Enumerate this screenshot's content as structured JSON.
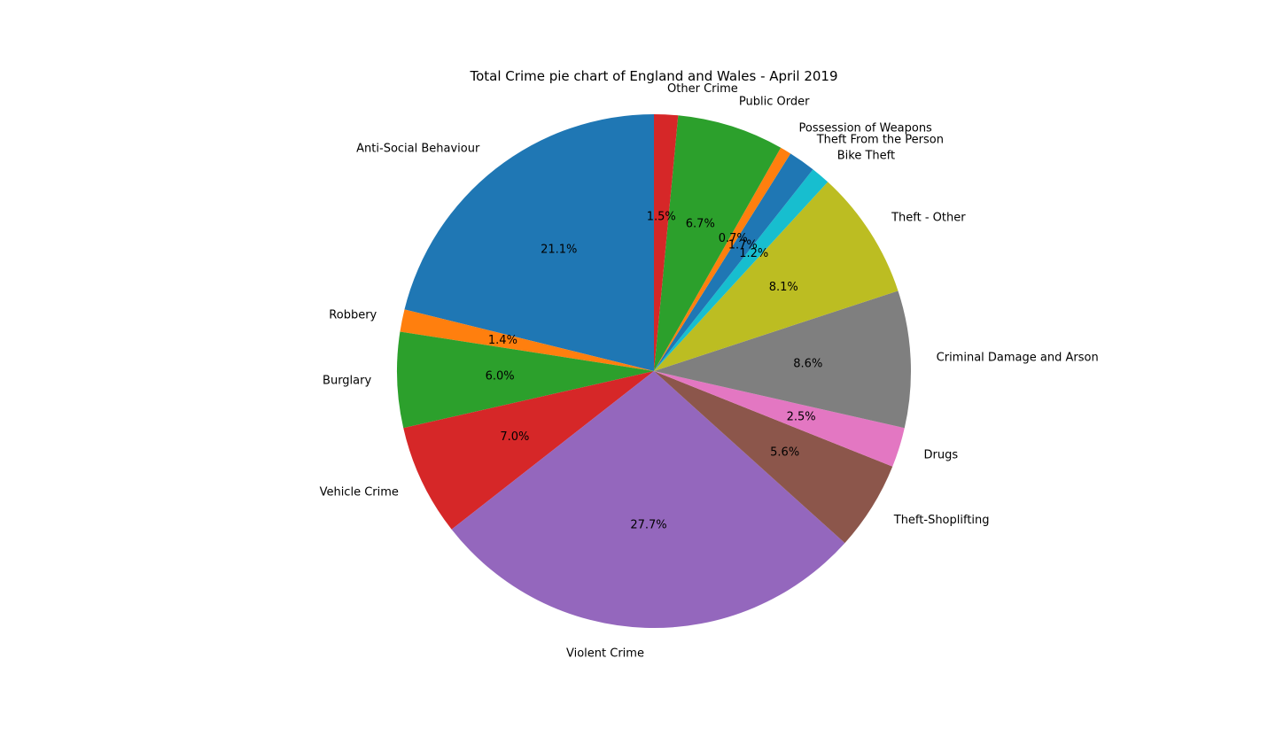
{
  "chart_data": {
    "type": "pie",
    "title": "Total Crime pie chart of England and Wales - April 2019",
    "start_angle_deg": 90,
    "direction": "counterclockwise",
    "slices": [
      {
        "label": "Anti-Social Behaviour",
        "value": 21.1,
        "pct_label": "21.1%",
        "color": "#1f77b4"
      },
      {
        "label": "Robbery",
        "value": 1.4,
        "pct_label": "1.4%",
        "color": "#ff7f0e"
      },
      {
        "label": "Burglary",
        "value": 6.0,
        "pct_label": "6.0%",
        "color": "#2ca02c"
      },
      {
        "label": "Vehicle Crime",
        "value": 7.0,
        "pct_label": "7.0%",
        "color": "#d62728"
      },
      {
        "label": "Violent Crime",
        "value": 27.7,
        "pct_label": "27.7%",
        "color": "#9467bd"
      },
      {
        "label": "Theft-Shoplifting",
        "value": 5.6,
        "pct_label": "5.6%",
        "color": "#8c564b"
      },
      {
        "label": "Drugs",
        "value": 2.5,
        "pct_label": "2.5%",
        "color": "#e377c2"
      },
      {
        "label": "Criminal Damage and Arson",
        "value": 8.6,
        "pct_label": "8.6%",
        "color": "#7f7f7f"
      },
      {
        "label": "Theft - Other",
        "value": 8.1,
        "pct_label": "8.1%",
        "color": "#bcbd22"
      },
      {
        "label": "Bike Theft",
        "value": 1.2,
        "pct_label": "1.2%",
        "color": "#17becf"
      },
      {
        "label": "Theft From the Person",
        "value": 1.7,
        "pct_label": "1.7%",
        "color": "#1f77b4"
      },
      {
        "label": "Possession of Weapons",
        "value": 0.7,
        "pct_label": "0.7%",
        "color": "#ff7f0e"
      },
      {
        "label": "Public Order",
        "value": 6.7,
        "pct_label": "6.7%",
        "color": "#2ca02c"
      },
      {
        "label": "Other Crime",
        "value": 1.5,
        "pct_label": "1.5%",
        "color": "#d62728"
      }
    ]
  }
}
